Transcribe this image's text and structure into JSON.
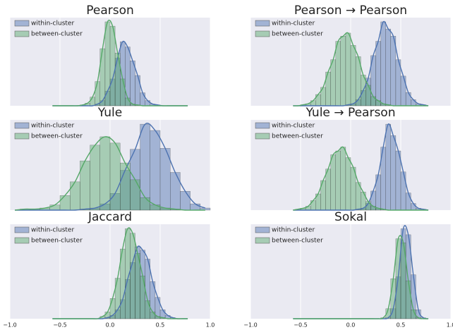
{
  "chart_data": [
    {
      "type": "histogram",
      "title": "Pearson",
      "xlim": [
        -1,
        1
      ],
      "xticks": [
        -1,
        -0.5,
        0,
        0.5,
        1
      ],
      "xtick_labels": false,
      "grid": true,
      "legend": "upper left",
      "bins": [
        -0.6,
        -0.55,
        -0.5,
        -0.45,
        -0.4,
        -0.35,
        -0.3,
        -0.25,
        -0.2,
        -0.15,
        -0.1,
        -0.05,
        0,
        0.05,
        0.1,
        0.15,
        0.2,
        0.25,
        0.3,
        0.35,
        0.4,
        0.45,
        0.5,
        0.55,
        0.6,
        0.65,
        0.7,
        0.75,
        0.8
      ],
      "series": [
        {
          "name": "within-cluster",
          "color": "#4c72b0",
          "values": [
            0,
            0,
            0,
            0,
            0,
            0,
            0,
            0,
            0,
            2,
            6,
            17,
            31,
            55,
            74,
            68,
            52,
            35,
            15,
            6,
            2,
            1,
            0,
            0,
            0,
            0,
            0,
            0
          ]
        },
        {
          "name": "between-cluster",
          "color": "#55a868",
          "values": [
            0,
            0,
            0,
            0,
            0,
            0,
            1,
            3,
            10,
            28,
            66,
            97,
            92,
            61,
            31,
            9,
            2,
            1,
            0,
            0,
            0,
            0,
            0,
            0,
            0,
            0,
            0,
            0
          ]
        }
      ]
    },
    {
      "type": "histogram",
      "title": "Pearson → Pearson",
      "xlim": [
        -1,
        1
      ],
      "xticks": [
        -1,
        -0.5,
        0,
        0.5,
        1
      ],
      "xtick_labels": false,
      "grid": true,
      "legend": "upper left",
      "bins": [
        -0.6,
        -0.55,
        -0.5,
        -0.45,
        -0.4,
        -0.35,
        -0.3,
        -0.25,
        -0.2,
        -0.15,
        -0.1,
        -0.05,
        0,
        0.05,
        0.1,
        0.15,
        0.2,
        0.25,
        0.3,
        0.35,
        0.4,
        0.45,
        0.5,
        0.55,
        0.6,
        0.65,
        0.7,
        0.75,
        0.8
      ],
      "series": [
        {
          "name": "within-cluster",
          "color": "#4c72b0",
          "values": [
            0,
            0,
            0,
            0,
            0,
            0,
            0,
            0,
            0,
            0,
            0,
            1,
            2,
            6,
            15,
            27,
            49,
            63,
            82,
            75,
            68,
            45,
            29,
            13,
            6,
            2,
            1,
            0
          ]
        },
        {
          "name": "between-cluster",
          "color": "#55a868",
          "values": [
            0,
            0,
            1,
            2,
            5,
            11,
            18,
            33,
            45,
            63,
            68,
            71,
            59,
            48,
            30,
            20,
            9,
            5,
            2,
            1,
            0,
            0,
            0,
            0,
            0,
            0,
            0,
            0
          ]
        }
      ]
    },
    {
      "type": "histogram",
      "title": "Yule",
      "xlim": [
        -1,
        1
      ],
      "xticks": [
        -1,
        -0.5,
        0,
        0.5,
        1
      ],
      "xtick_labels": false,
      "grid": true,
      "legend": "upper left",
      "bins": [
        -1,
        -0.9,
        -0.8,
        -0.7,
        -0.6,
        -0.5,
        -0.4,
        -0.3,
        -0.2,
        -0.1,
        0,
        0.1,
        0.2,
        0.3,
        0.4,
        0.5,
        0.6,
        0.7,
        0.8,
        0.9,
        1
      ],
      "series": [
        {
          "name": "within-cluster",
          "color": "#4c72b0",
          "values": [
            0,
            0,
            0,
            0,
            0,
            0,
            0,
            1,
            2,
            6,
            16,
            38,
            58,
            82,
            76,
            59,
            36,
            18,
            6,
            2
          ]
        },
        {
          "name": "between-cluster",
          "color": "#55a868",
          "values": [
            0,
            1,
            1,
            2,
            5,
            14,
            27,
            47,
            62,
            70,
            64,
            45,
            29,
            12,
            5,
            2,
            1,
            0,
            0,
            0
          ]
        }
      ]
    },
    {
      "type": "histogram",
      "title": "Yule → Pearson",
      "xlim": [
        -1,
        1
      ],
      "xticks": [
        -1,
        -0.5,
        0,
        0.5,
        1
      ],
      "xtick_labels": false,
      "grid": true,
      "legend": "upper left",
      "bins": [
        -0.6,
        -0.55,
        -0.5,
        -0.45,
        -0.4,
        -0.35,
        -0.3,
        -0.25,
        -0.2,
        -0.15,
        -0.1,
        -0.05,
        0,
        0.05,
        0.1,
        0.15,
        0.2,
        0.25,
        0.3,
        0.35,
        0.4,
        0.45,
        0.5,
        0.55,
        0.6,
        0.65,
        0.7,
        0.75,
        0.8
      ],
      "series": [
        {
          "name": "within-cluster",
          "color": "#4c72b0",
          "values": [
            0,
            0,
            0,
            0,
            0,
            0,
            0,
            0,
            0,
            0,
            0,
            0,
            0,
            1,
            2,
            7,
            20,
            37,
            66,
            90,
            78,
            62,
            40,
            18,
            7,
            2,
            1,
            0
          ]
        },
        {
          "name": "between-cluster",
          "color": "#55a868",
          "values": [
            0,
            1,
            2,
            4,
            10,
            17,
            31,
            43,
            58,
            62,
            66,
            55,
            45,
            29,
            19,
            9,
            4,
            2,
            1,
            0,
            0,
            0,
            0,
            0,
            0,
            0,
            0,
            0
          ]
        }
      ]
    },
    {
      "type": "histogram",
      "title": "Jaccard",
      "xlim": [
        -1,
        1
      ],
      "xticks": [
        {
          "value": -1,
          "label": "−1.0"
        },
        {
          "value": -0.5,
          "label": "−0.5"
        },
        {
          "value": 0,
          "label": "0.0"
        },
        {
          "value": 0.5,
          "label": "0.5"
        },
        {
          "value": 1,
          "label": "1.0"
        }
      ],
      "xtick_labels": true,
      "grid": true,
      "legend": "upper left",
      "bins": [
        -0.6,
        -0.55,
        -0.5,
        -0.45,
        -0.4,
        -0.35,
        -0.3,
        -0.25,
        -0.2,
        -0.15,
        -0.1,
        -0.05,
        0,
        0.05,
        0.1,
        0.15,
        0.2,
        0.25,
        0.3,
        0.35,
        0.4,
        0.45,
        0.5,
        0.55,
        0.6,
        0.65,
        0.7,
        0.75,
        0.8
      ],
      "series": [
        {
          "name": "within-cluster",
          "color": "#4c72b0",
          "values": [
            0,
            0,
            0,
            0,
            0,
            0,
            0,
            0,
            0,
            0,
            0,
            1,
            3,
            8,
            17,
            35,
            50,
            64,
            61,
            53,
            33,
            19,
            8,
            3,
            1,
            0,
            0,
            0
          ]
        },
        {
          "name": "between-cluster",
          "color": "#55a868",
          "values": [
            0,
            0,
            0,
            0,
            0,
            0,
            0,
            0,
            0,
            0,
            2,
            6,
            18,
            36,
            62,
            80,
            76,
            58,
            38,
            16,
            6,
            2,
            1,
            0,
            0,
            0,
            0,
            0
          ]
        }
      ]
    },
    {
      "type": "histogram",
      "title": "Sokal",
      "xlim": [
        -1,
        1
      ],
      "xticks": [
        {
          "value": -1,
          "label": "−1.0"
        },
        {
          "value": -0.5,
          "label": "−0.5"
        },
        {
          "value": 0,
          "label": "0.0"
        },
        {
          "value": 0.5,
          "label": "0.5"
        },
        {
          "value": 1,
          "label": "1.0"
        }
      ],
      "xtick_labels": true,
      "grid": true,
      "legend": "upper left",
      "bins": [
        -0.6,
        -0.55,
        -0.5,
        -0.45,
        -0.4,
        -0.35,
        -0.3,
        -0.25,
        -0.2,
        -0.15,
        -0.1,
        -0.05,
        0,
        0.05,
        0.1,
        0.15,
        0.2,
        0.25,
        0.3,
        0.35,
        0.4,
        0.45,
        0.5,
        0.55,
        0.6,
        0.65,
        0.7,
        0.75,
        0.8
      ],
      "series": [
        {
          "name": "within-cluster",
          "color": "#4c72b0",
          "values": [
            0,
            0,
            0,
            0,
            0,
            0,
            0,
            0,
            0,
            0,
            0,
            0,
            0,
            0,
            0,
            0,
            0,
            0,
            0,
            1,
            10,
            42,
            90,
            84,
            44,
            9,
            1,
            0
          ]
        },
        {
          "name": "between-cluster",
          "color": "#55a868",
          "values": [
            0,
            0,
            0,
            0,
            0,
            0,
            0,
            0,
            0,
            0,
            0,
            0,
            0,
            0,
            0,
            0,
            0,
            0,
            1,
            10,
            40,
            80,
            76,
            38,
            9,
            1,
            0,
            0
          ]
        }
      ]
    }
  ]
}
